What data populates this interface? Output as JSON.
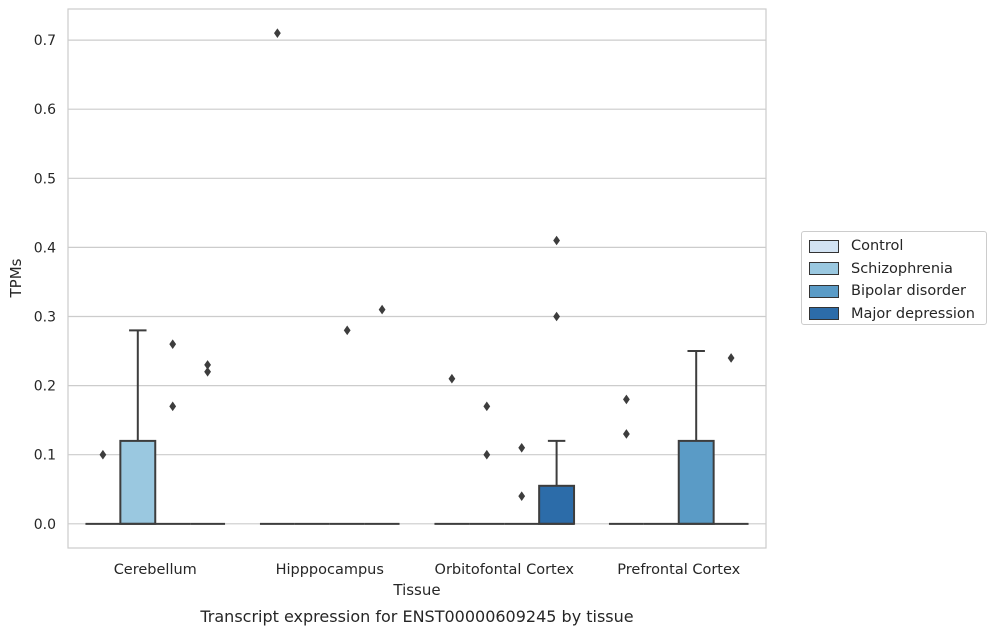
{
  "chart_data": {
    "type": "box",
    "title": "Transcript expression for ENST00000609245 by tissue",
    "xlabel": "Tissue",
    "ylabel": "TPMs",
    "categories": [
      "Cerebellum",
      "Hipppocampus",
      "Orbitofontal Cortex",
      "Prefrontal Cortex"
    ],
    "ylim": [
      -0.035,
      0.745
    ],
    "yticks": [
      0.0,
      0.1,
      0.2,
      0.3,
      0.4,
      0.5,
      0.6,
      0.7
    ],
    "ytick_labels": [
      "0.0",
      "0.1",
      "0.2",
      "0.3",
      "0.4",
      "0.5",
      "0.6",
      "0.7"
    ],
    "grid": "horizontal",
    "legend_position": "right",
    "series": [
      {
        "name": "Control",
        "color": "#d2e3f3",
        "boxes": [
          {
            "category": "Cerebellum",
            "q1": 0,
            "median": 0,
            "q3": 0,
            "whisker_low": 0,
            "whisker_high": 0,
            "outliers": [
              0.1
            ]
          },
          {
            "category": "Hipppocampus",
            "q1": 0,
            "median": 0,
            "q3": 0,
            "whisker_low": 0,
            "whisker_high": 0,
            "outliers": [
              0.71
            ]
          },
          {
            "category": "Orbitofontal Cortex",
            "q1": 0,
            "median": 0,
            "q3": 0,
            "whisker_low": 0,
            "whisker_high": 0,
            "outliers": [
              0.21
            ]
          },
          {
            "category": "Prefrontal Cortex",
            "q1": 0,
            "median": 0,
            "q3": 0,
            "whisker_low": 0,
            "whisker_high": 0,
            "outliers": [
              0.18,
              0.13
            ]
          }
        ]
      },
      {
        "name": "Schizophrenia",
        "color": "#9ac8e0",
        "boxes": [
          {
            "category": "Cerebellum",
            "q1": 0,
            "median": 0,
            "q3": 0.12,
            "whisker_low": 0,
            "whisker_high": 0.28,
            "outliers": []
          },
          {
            "category": "Hipppocampus",
            "q1": 0,
            "median": 0,
            "q3": 0,
            "whisker_low": 0,
            "whisker_high": 0,
            "outliers": []
          },
          {
            "category": "Orbitofontal Cortex",
            "q1": 0,
            "median": 0,
            "q3": 0,
            "whisker_low": 0,
            "whisker_high": 0,
            "outliers": [
              0.17,
              0.1
            ]
          },
          {
            "category": "Prefrontal Cortex",
            "q1": 0,
            "median": 0,
            "q3": 0,
            "whisker_low": 0,
            "whisker_high": 0,
            "outliers": []
          }
        ]
      },
      {
        "name": "Bipolar disorder",
        "color": "#5a9bc6",
        "boxes": [
          {
            "category": "Cerebellum",
            "q1": 0,
            "median": 0,
            "q3": 0,
            "whisker_low": 0,
            "whisker_high": 0,
            "outliers": [
              0.26,
              0.17
            ]
          },
          {
            "category": "Hipppocampus",
            "q1": 0,
            "median": 0,
            "q3": 0,
            "whisker_low": 0,
            "whisker_high": 0,
            "outliers": [
              0.28
            ]
          },
          {
            "category": "Orbitofontal Cortex",
            "q1": 0,
            "median": 0,
            "q3": 0,
            "whisker_low": 0,
            "whisker_high": 0,
            "outliers": [
              0.11,
              0.04
            ]
          },
          {
            "category": "Prefrontal Cortex",
            "q1": 0,
            "median": 0,
            "q3": 0.12,
            "whisker_low": 0,
            "whisker_high": 0.25,
            "outliers": []
          }
        ]
      },
      {
        "name": "Major depression",
        "color": "#2c6ca9",
        "boxes": [
          {
            "category": "Cerebellum",
            "q1": 0,
            "median": 0,
            "q3": 0,
            "whisker_low": 0,
            "whisker_high": 0,
            "outliers": [
              0.23,
              0.22
            ]
          },
          {
            "category": "Hipppocampus",
            "q1": 0,
            "median": 0,
            "q3": 0,
            "whisker_low": 0,
            "whisker_high": 0,
            "outliers": [
              0.31
            ]
          },
          {
            "category": "Orbitofontal Cortex",
            "q1": 0,
            "median": 0,
            "q3": 0.055,
            "whisker_low": 0,
            "whisker_high": 0.12,
            "outliers": [
              0.41,
              0.3
            ]
          },
          {
            "category": "Prefrontal Cortex",
            "q1": 0,
            "median": 0,
            "q3": 0,
            "whisker_low": 0,
            "whisker_high": 0,
            "outliers": [
              0.24
            ]
          }
        ]
      }
    ]
  }
}
